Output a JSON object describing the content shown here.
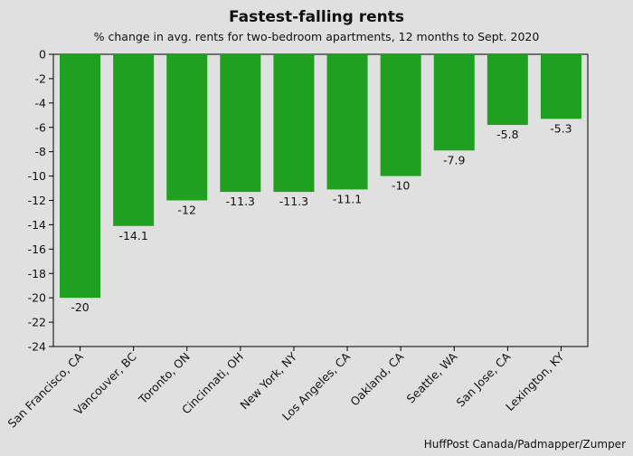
{
  "chart_data": {
    "type": "bar",
    "title": "Fastest-falling rents",
    "subtitle": "% change in avg. rents for two-bedroom apartments, 12 months to Sept. 2020",
    "categories": [
      "San Francisco, CA",
      "Vancouver, BC",
      "Toronto, ON",
      "Cincinnati, OH",
      "New York, NY",
      "Los Angeles, CA",
      "Oakland, CA",
      "Seattle, WA",
      "San Jose, CA",
      "Lexington, KY"
    ],
    "values": [
      -20,
      -14.1,
      -12,
      -11.3,
      -11.3,
      -11.1,
      -10,
      -7.9,
      -5.8,
      -5.3
    ],
    "data_labels": [
      "-20",
      "-14.1",
      "-12",
      "-11.3",
      "-11.3",
      "-11.1",
      "-10",
      "-7.9",
      "-5.8",
      "-5.3"
    ],
    "ylim": [
      -24,
      0
    ],
    "yticks": [
      0,
      -2,
      -4,
      -6,
      -8,
      -10,
      -12,
      -14,
      -16,
      -18,
      -20,
      -22,
      -24
    ],
    "ytick_labels": [
      "0",
      "-2",
      "-4",
      "-6",
      "-8",
      "-10",
      "-12",
      "-14",
      "-16",
      "-18",
      "-20",
      "-22",
      "-24"
    ],
    "xlabel": "",
    "ylabel": "",
    "grid": false,
    "legend": "none",
    "bar_color": "#1fa020",
    "plot_background": "#e0e0e0",
    "source": "HuffPost Canada/Padmapper/Zumper"
  }
}
